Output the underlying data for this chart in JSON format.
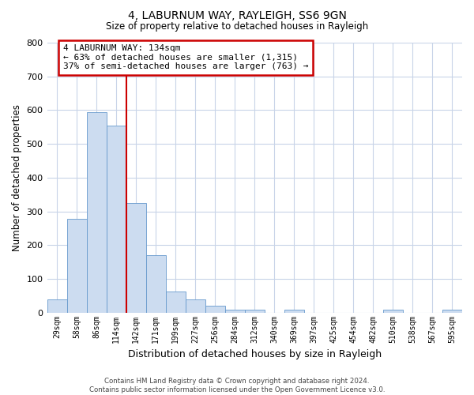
{
  "title": "4, LABURNUM WAY, RAYLEIGH, SS6 9GN",
  "subtitle": "Size of property relative to detached houses in Rayleigh",
  "xlabel": "Distribution of detached houses by size in Rayleigh",
  "ylabel": "Number of detached properties",
  "bin_labels": [
    "29sqm",
    "58sqm",
    "86sqm",
    "114sqm",
    "142sqm",
    "171sqm",
    "199sqm",
    "227sqm",
    "256sqm",
    "284sqm",
    "312sqm",
    "340sqm",
    "369sqm",
    "397sqm",
    "425sqm",
    "454sqm",
    "482sqm",
    "510sqm",
    "538sqm",
    "567sqm",
    "595sqm"
  ],
  "bar_heights": [
    38,
    278,
    594,
    553,
    325,
    170,
    63,
    38,
    20,
    8,
    8,
    0,
    8,
    0,
    0,
    0,
    0,
    8,
    0,
    0,
    8
  ],
  "bar_color": "#ccdcf0",
  "bar_edge_color": "#6699cc",
  "vline_color": "#cc0000",
  "vline_index": 3.5,
  "ylim": [
    0,
    800
  ],
  "yticks": [
    0,
    100,
    200,
    300,
    400,
    500,
    600,
    700,
    800
  ],
  "annotation_title": "4 LABURNUM WAY: 134sqm",
  "annotation_line1": "← 63% of detached houses are smaller (1,315)",
  "annotation_line2": "37% of semi-detached houses are larger (763) →",
  "annotation_box_color": "#ffffff",
  "annotation_box_edge": "#cc0000",
  "footer_line1": "Contains HM Land Registry data © Crown copyright and database right 2024.",
  "footer_line2": "Contains public sector information licensed under the Open Government Licence v3.0.",
  "background_color": "#ffffff",
  "grid_color": "#c8d4e8"
}
